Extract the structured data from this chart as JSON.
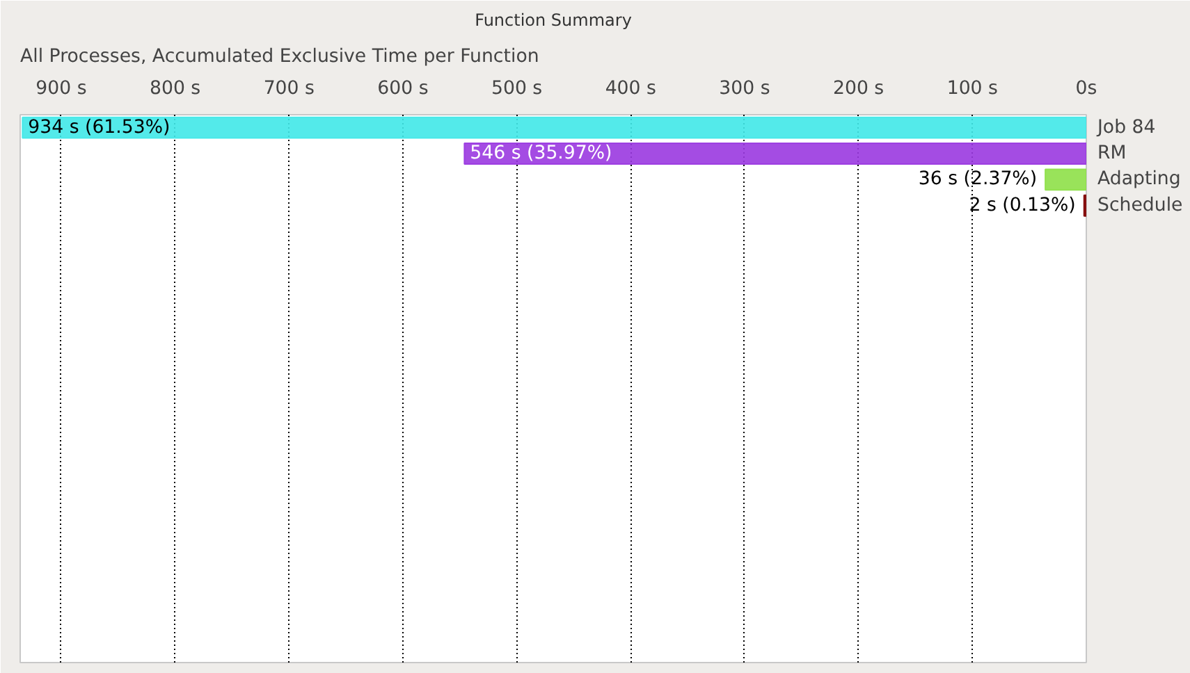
{
  "chart_data": {
    "type": "bar",
    "orientation": "horizontal",
    "title": "Function Summary",
    "subtitle": "All Processes, Accumulated Exclusive Time per Function",
    "categories": [
      "Job 84",
      "RM",
      "Adapting",
      "Schedule"
    ],
    "values": [
      934,
      546,
      36,
      2
    ],
    "colors": [
      "#40e8e8",
      "#9a38e0",
      "#8ee048",
      "#800000"
    ],
    "value_labels": [
      "934 s (61.53%)",
      "546 s (35.97%)",
      "36 s (2.37%)",
      "2 s (0.13%)"
    ],
    "xlim": [
      936,
      0
    ],
    "xticks": [
      {
        "value": 900,
        "label": "900 s"
      },
      {
        "value": 800,
        "label": "800 s"
      },
      {
        "value": 700,
        "label": "700 s"
      },
      {
        "value": 600,
        "label": "600 s"
      },
      {
        "value": 500,
        "label": "500 s"
      },
      {
        "value": 400,
        "label": "400 s"
      },
      {
        "value": 300,
        "label": "300 s"
      },
      {
        "value": 200,
        "label": "200 s"
      },
      {
        "value": 100,
        "label": "100 s"
      },
      {
        "value": 0,
        "label": "0s"
      }
    ],
    "grid": "x"
  }
}
